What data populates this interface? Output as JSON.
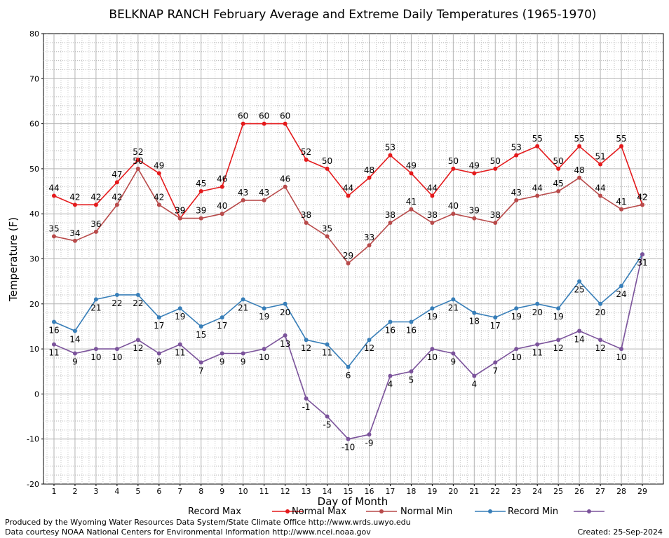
{
  "chart_data": {
    "type": "line",
    "title": "BELKNAP RANCH February Average and Extreme Daily Temperatures (1965-1970)",
    "xlabel": "Day of Month",
    "ylabel": "Temperature (F)",
    "ylim": [
      -20,
      80
    ],
    "yticks": [
      -20,
      -10,
      0,
      10,
      20,
      30,
      40,
      50,
      60,
      70,
      80
    ],
    "categories": [
      1,
      2,
      3,
      4,
      5,
      6,
      7,
      8,
      9,
      10,
      11,
      12,
      13,
      14,
      15,
      16,
      17,
      18,
      19,
      20,
      21,
      22,
      23,
      24,
      25,
      26,
      27,
      28,
      29
    ],
    "grid": true,
    "legend_position": "bottom",
    "series": [
      {
        "name": "Record Max",
        "color": "#e41a1c",
        "label_position": "above",
        "values": [
          44,
          42,
          42,
          47,
          52,
          49,
          39,
          45,
          46,
          60,
          60,
          60,
          52,
          50,
          44,
          48,
          53,
          49,
          44,
          50,
          49,
          50,
          53,
          55,
          50,
          55,
          51,
          55,
          42
        ]
      },
      {
        "name": "Normal Max",
        "color": "#b84a4a",
        "label_position": "above",
        "values": [
          35,
          34,
          36,
          42,
          50,
          42,
          39,
          39,
          40,
          43,
          43,
          46,
          38,
          35,
          29,
          33,
          38,
          41,
          38,
          40,
          39,
          38,
          43,
          44,
          45,
          48,
          44,
          41,
          42
        ]
      },
      {
        "name": "Normal Min",
        "color": "#377eb8",
        "label_position": "below",
        "values": [
          16,
          14,
          21,
          22,
          22,
          17,
          19,
          15,
          17,
          21,
          19,
          20,
          12,
          11,
          6,
          12,
          16,
          16,
          19,
          21,
          18,
          17,
          19,
          20,
          19,
          25,
          20,
          24,
          31
        ]
      },
      {
        "name": "Record Min",
        "color": "#7b539b",
        "label_position": "below",
        "values": [
          11,
          9,
          10,
          10,
          12,
          9,
          11,
          7,
          9,
          9,
          10,
          13,
          -1,
          -5,
          -10,
          -9,
          4,
          5,
          10,
          9,
          4,
          7,
          10,
          11,
          12,
          14,
          12,
          10,
          31
        ]
      }
    ]
  },
  "footer": {
    "produced_by": "Produced by the Wyoming Water Resources Data System/State Climate Office http://www.wrds.uwyo.edu",
    "courtesy": "Data courtesy NOAA National Centers for Environmental Information http://www.ncei.noaa.gov",
    "created": "Created:  25-Sep-2024"
  }
}
